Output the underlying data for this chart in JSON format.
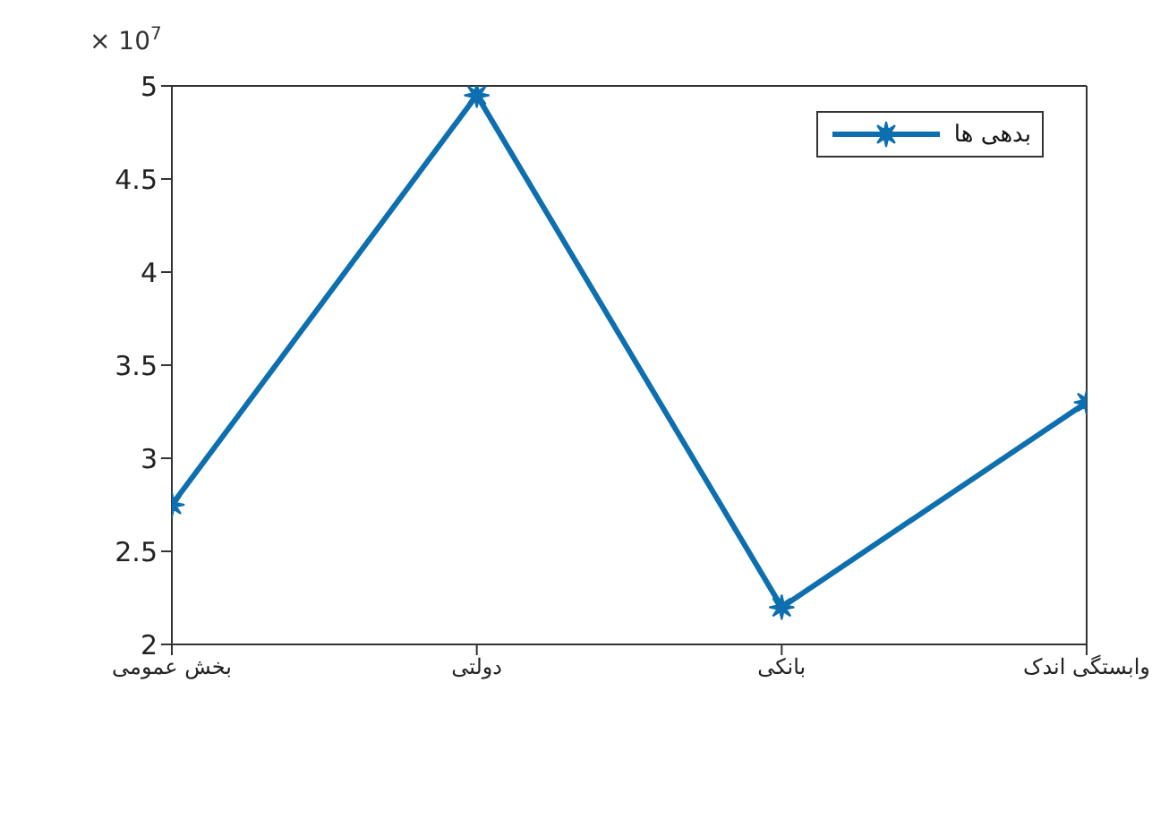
{
  "chart_data": {
    "type": "line",
    "categories": [
      "بخش عمومی",
      "دولتی",
      "بانکی",
      "وابستگی اندک"
    ],
    "series": [
      {
        "name": "بدهی ها",
        "color": "#0d6fb0",
        "values": [
          2.75,
          4.95,
          2.2,
          3.3
        ]
      }
    ],
    "ylim": [
      2,
      5
    ],
    "yticks": [
      2,
      2.5,
      3,
      3.5,
      4,
      4.5,
      5
    ],
    "annotations": [
      "× 10$^{7}$"
    ],
    "legend": "top right",
    "marker": "star",
    "line_style": "solid",
    "grid": false
  }
}
